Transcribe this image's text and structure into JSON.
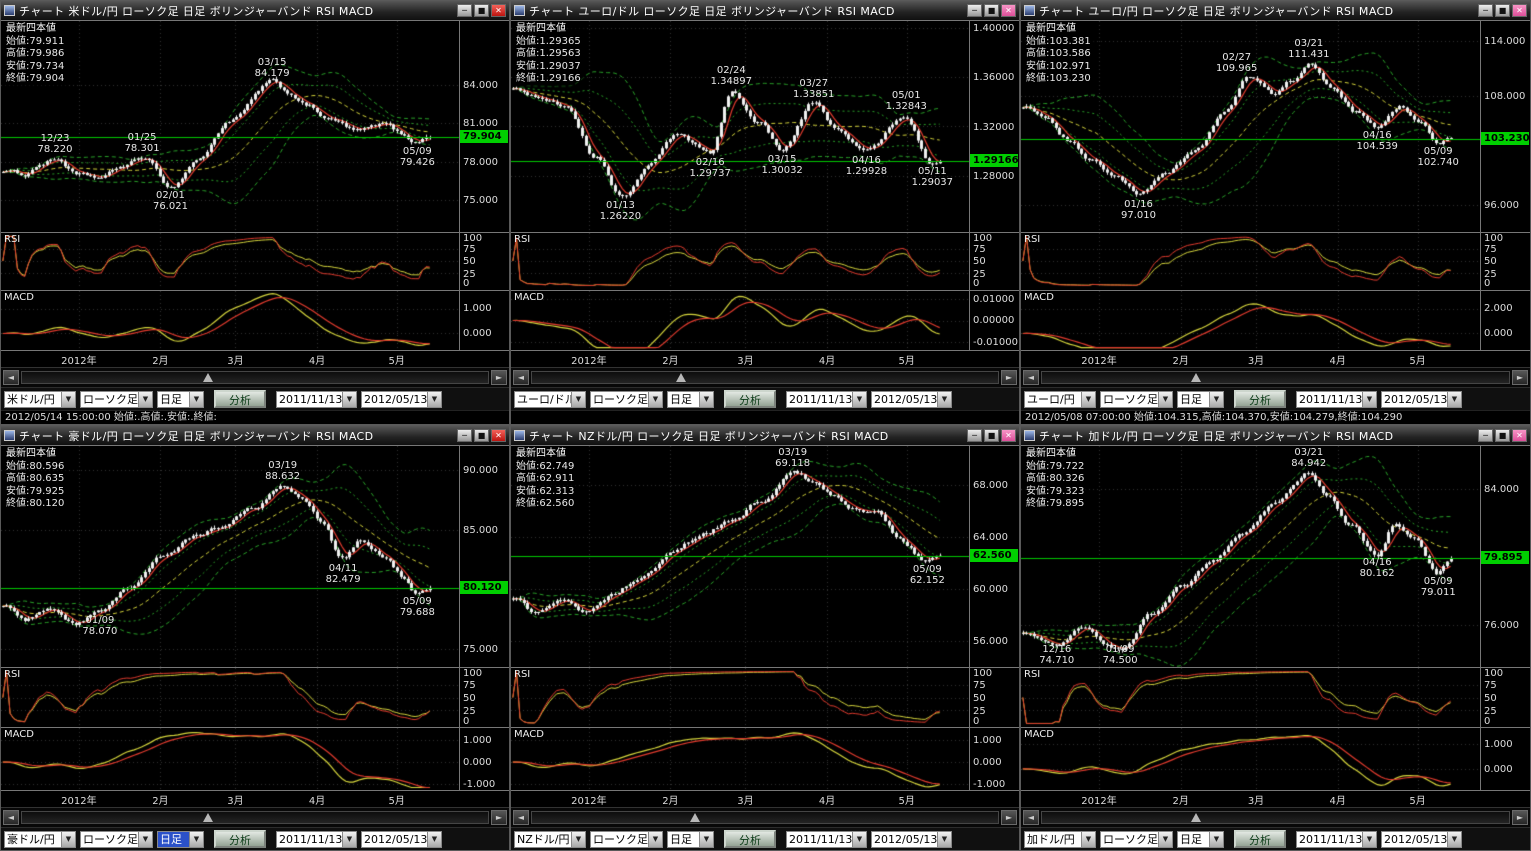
{
  "shared": {
    "quote_header": "最新四本値",
    "rsi_label": "RSI",
    "macd_label": "MACD",
    "analyze": "分析",
    "btn_min": "─",
    "btn_max": "■",
    "btn_close": "✕",
    "arrow_left": "◄",
    "arrow_right": "►",
    "dropdown": "▼"
  },
  "colors": {
    "background": "#000000",
    "candle": "#f0f0f0",
    "band": "#29a329",
    "ma_mid": "#d6d63c",
    "ma_fast": "#e23b2e",
    "price_line": "#00c800",
    "badge_bg": "#00cf00",
    "grid": "#333333"
  },
  "x_axis": [
    {
      "label": "2012年",
      "x": 0.17
    },
    {
      "label": "2月",
      "x": 0.348
    },
    {
      "label": "3月",
      "x": 0.512
    },
    {
      "label": "4月",
      "x": 0.69
    },
    {
      "label": "5月",
      "x": 0.864
    }
  ],
  "rsi_axis": [
    "100",
    "75",
    "50",
    "25",
    "0"
  ],
  "panels": [
    {
      "title": "チャート 米ドル/円 ローソク足 日足 ボリンジャーバンド RSI MACD",
      "focused": true,
      "quote": [
        "始値:79.911",
        "高値:79.986",
        "安値:79.734",
        "終値:79.904"
      ],
      "toolbar": {
        "pair": "米ドル/円",
        "style": "ローソク足",
        "timeframe": "日足",
        "from": "2011/11/13",
        "to": "2012/05/13",
        "timeframe_selected": false
      },
      "status": "2012/05/14 15:00:00 始値:.高値:.安値:.終値:",
      "scroll_pos": 0.4,
      "chart_data": {
        "type": "candlestick",
        "current_price": "79.904",
        "price_axis": [
          "84.000",
          "81.000",
          "78.000",
          "75.000"
        ],
        "y_min": 72.5,
        "y_max": 89.0,
        "x_end": 0.94,
        "anchors": [
          [
            0,
            77.3
          ],
          [
            0.05,
            77.0
          ],
          [
            0.078,
            77.8
          ],
          [
            0.118,
            78.22
          ],
          [
            0.165,
            76.9
          ],
          [
            0.216,
            76.7
          ],
          [
            0.26,
            77.6
          ],
          [
            0.308,
            78.301
          ],
          [
            0.37,
            76.021
          ],
          [
            0.43,
            78.2
          ],
          [
            0.5,
            81.2
          ],
          [
            0.592,
            84.179
          ],
          [
            0.63,
            83.3
          ],
          [
            0.67,
            82.3
          ],
          [
            0.72,
            81.2
          ],
          [
            0.78,
            80.3
          ],
          [
            0.84,
            80.8
          ],
          [
            0.88,
            80.0
          ],
          [
            0.909,
            79.426
          ],
          [
            0.94,
            79.904
          ]
        ],
        "annotations": [
          {
            "date": "12/23",
            "price": "78.220",
            "x": 0.118,
            "side": "above"
          },
          {
            "date": "01/25",
            "price": "78.301",
            "x": 0.308,
            "side": "above"
          },
          {
            "date": "02/01",
            "price": "76.021",
            "x": 0.37,
            "side": "below"
          },
          {
            "date": "03/15",
            "price": "84.179",
            "x": 0.592,
            "side": "above"
          },
          {
            "date": "05/09",
            "price": "79.426",
            "x": 0.909,
            "side": "below"
          }
        ],
        "macd_axis": [
          {
            "label": "1.000",
            "y": 0.3
          },
          {
            "label": "0.000",
            "y": 0.72
          }
        ]
      }
    },
    {
      "title": "チャート ユーロ/ドル ローソク足 日足 ボリンジャーバンド RSI MACD",
      "focused": false,
      "quote": [
        "始値:1.29365",
        "高値:1.29563",
        "安値:1.29037",
        "終値:1.29166"
      ],
      "toolbar": {
        "pair": "ユーロ/ドル",
        "style": "ローソク足",
        "timeframe": "日足",
        "from": "2011/11/13",
        "to": "2012/05/13",
        "timeframe_selected": false
      },
      "status": "",
      "scroll_pos": 0.32,
      "chart_data": {
        "type": "candlestick",
        "current_price": "1.29166",
        "price_axis": [
          "1.40000",
          "1.36000",
          "1.32000",
          "1.28000"
        ],
        "y_min": 1.234,
        "y_max": 1.406,
        "x_end": 0.94,
        "anchors": [
          [
            0,
            1.352
          ],
          [
            0.06,
            1.344
          ],
          [
            0.12,
            1.335
          ],
          [
            0.18,
            1.296
          ],
          [
            0.239,
            1.2622
          ],
          [
            0.3,
            1.289
          ],
          [
            0.36,
            1.312
          ],
          [
            0.435,
            1.2974
          ],
          [
            0.481,
            1.34897
          ],
          [
            0.54,
            1.324
          ],
          [
            0.592,
            1.30032
          ],
          [
            0.661,
            1.33851
          ],
          [
            0.71,
            1.318
          ],
          [
            0.776,
            1.29928
          ],
          [
            0.863,
            1.32843
          ],
          [
            0.92,
            1.29037
          ],
          [
            0.94,
            1.29166
          ]
        ],
        "annotations": [
          {
            "date": "01/13",
            "price": "1.26220",
            "x": 0.239,
            "side": "below"
          },
          {
            "date": "02/16",
            "price": "1.29737",
            "x": 0.435,
            "side": "below"
          },
          {
            "date": "02/24",
            "price": "1.34897",
            "x": 0.481,
            "side": "above"
          },
          {
            "date": "03/15",
            "price": "1.30032",
            "x": 0.592,
            "side": "below"
          },
          {
            "date": "03/27",
            "price": "1.33851",
            "x": 0.661,
            "side": "above"
          },
          {
            "date": "04/16",
            "price": "1.29928",
            "x": 0.776,
            "side": "below"
          },
          {
            "date": "05/01",
            "price": "1.32843",
            "x": 0.863,
            "side": "above"
          },
          {
            "date": "05/11",
            "price": "1.29037",
            "x": 0.92,
            "side": "below"
          }
        ],
        "macd_axis": [
          {
            "label": "0.01000",
            "y": 0.14
          },
          {
            "label": "0.00000",
            "y": 0.5
          },
          {
            "label": "-0.01000",
            "y": 0.86
          }
        ]
      }
    },
    {
      "title": "チャート ユーロ/円 ローソク足 日足 ボリンジャーバンド RSI MACD",
      "focused": false,
      "quote": [
        "始値:103.381",
        "高値:103.586",
        "安値:102.971",
        "終値:103.230"
      ],
      "toolbar": {
        "pair": "ユーロ/円",
        "style": "ローソク足",
        "timeframe": "日足",
        "from": "2011/11/13",
        "to": "2012/05/13",
        "timeframe_selected": false
      },
      "status": "2012/05/08 07:00:00 始値:104.315,高値:104.370,安値:104.279,終値:104.290",
      "scroll_pos": 0.33,
      "chart_data": {
        "type": "candlestick",
        "current_price": "103.230",
        "price_axis": [
          "114.000",
          "108.000",
          "96.000"
        ],
        "y_min": 93.0,
        "y_max": 116.2,
        "x_end": 0.94,
        "anchors": [
          [
            0,
            106.8
          ],
          [
            0.05,
            105.8
          ],
          [
            0.1,
            103.2
          ],
          [
            0.15,
            100.8
          ],
          [
            0.2,
            99.2
          ],
          [
            0.256,
            97.01
          ],
          [
            0.31,
            99.3
          ],
          [
            0.38,
            102.2
          ],
          [
            0.44,
            106.0
          ],
          [
            0.498,
            109.965
          ],
          [
            0.55,
            108.0
          ],
          [
            0.59,
            109.6
          ],
          [
            0.627,
            111.431
          ],
          [
            0.68,
            108.6
          ],
          [
            0.73,
            106.2
          ],
          [
            0.776,
            104.539
          ],
          [
            0.83,
            106.9
          ],
          [
            0.87,
            105.2
          ],
          [
            0.909,
            102.74
          ],
          [
            0.94,
            103.23
          ]
        ],
        "annotations": [
          {
            "date": "01/16",
            "price": "97.010",
            "x": 0.256,
            "side": "below"
          },
          {
            "date": "02/27",
            "price": "109.965",
            "x": 0.47,
            "side": "above"
          },
          {
            "date": "03/21",
            "price": "111.431",
            "x": 0.627,
            "side": "above"
          },
          {
            "date": "04/16",
            "price": "104.539",
            "x": 0.776,
            "side": "below"
          },
          {
            "date": "05/09",
            "price": "102.740",
            "x": 0.909,
            "side": "below"
          }
        ],
        "macd_axis": [
          {
            "label": "2.000",
            "y": 0.3
          },
          {
            "label": "0.000",
            "y": 0.72
          }
        ]
      }
    },
    {
      "title": "チャート 豪ドル/円 ローソク足 日足 ボリンジャーバンド RSI MACD",
      "focused": true,
      "quote": [
        "始値:80.596",
        "高値:80.635",
        "安値:79.925",
        "終値:80.120"
      ],
      "toolbar": {
        "pair": "豪ドル/円",
        "style": "ローソク足",
        "timeframe": "日足",
        "from": "2011/11/13",
        "to": "2012/05/13",
        "timeframe_selected": true
      },
      "status": "",
      "scroll_pos": 0.4,
      "chart_data": {
        "type": "candlestick",
        "current_price": "80.120",
        "price_axis": [
          "90.000",
          "85.000",
          "75.000"
        ],
        "y_min": 73.5,
        "y_max": 92.0,
        "x_end": 0.94,
        "anchors": [
          [
            0,
            78.6
          ],
          [
            0.05,
            77.4
          ],
          [
            0.1,
            78.3
          ],
          [
            0.16,
            77.1
          ],
          [
            0.216,
            78.07
          ],
          [
            0.28,
            80.2
          ],
          [
            0.35,
            82.6
          ],
          [
            0.42,
            84.3
          ],
          [
            0.48,
            85.2
          ],
          [
            0.55,
            86.8
          ],
          [
            0.615,
            88.632
          ],
          [
            0.66,
            87.6
          ],
          [
            0.7,
            85.6
          ],
          [
            0.747,
            82.479
          ],
          [
            0.79,
            84.1
          ],
          [
            0.84,
            82.8
          ],
          [
            0.88,
            81.0
          ],
          [
            0.909,
            79.688
          ],
          [
            0.94,
            80.12
          ]
        ],
        "annotations": [
          {
            "date": "01/09",
            "price": "78.070",
            "x": 0.216,
            "side": "below"
          },
          {
            "date": "03/19",
            "price": "88.632",
            "x": 0.615,
            "side": "above"
          },
          {
            "date": "04/11",
            "price": "82.479",
            "x": 0.747,
            "side": "below"
          },
          {
            "date": "05/09",
            "price": "79.688",
            "x": 0.909,
            "side": "below"
          }
        ],
        "macd_axis": [
          {
            "label": "1.000",
            "y": 0.2
          },
          {
            "label": "0.000",
            "y": 0.55
          },
          {
            "label": "-1.000",
            "y": 0.9
          }
        ]
      }
    },
    {
      "title": "チャート NZドル/円 ローソク足 日足 ボリンジャーバンド RSI MACD",
      "focused": false,
      "quote": [
        "始値:62.749",
        "高値:62.911",
        "安値:62.313",
        "終値:62.560"
      ],
      "toolbar": {
        "pair": "NZドル/円",
        "style": "ローソク足",
        "timeframe": "日足",
        "from": "2011/11/13",
        "to": "2012/05/13",
        "timeframe_selected": false
      },
      "status": "",
      "scroll_pos": 0.35,
      "chart_data": {
        "type": "candlestick",
        "current_price": "62.560",
        "price_axis": [
          "68.000",
          "64.000",
          "60.000",
          "56.000"
        ],
        "y_min": 54.0,
        "y_max": 71.0,
        "x_end": 0.94,
        "anchors": [
          [
            0,
            59.2
          ],
          [
            0.05,
            58.1
          ],
          [
            0.1,
            59.3
          ],
          [
            0.16,
            58.3
          ],
          [
            0.216,
            59.6
          ],
          [
            0.28,
            60.9
          ],
          [
            0.35,
            62.8
          ],
          [
            0.42,
            64.3
          ],
          [
            0.48,
            65.3
          ],
          [
            0.55,
            66.9
          ],
          [
            0.615,
            69.118
          ],
          [
            0.66,
            68.3
          ],
          [
            0.7,
            67.3
          ],
          [
            0.747,
            66.1
          ],
          [
            0.8,
            65.8
          ],
          [
            0.85,
            63.9
          ],
          [
            0.909,
            62.152
          ],
          [
            0.94,
            62.56
          ]
        ],
        "annotations": [
          {
            "date": "03/19",
            "price": "69.118",
            "x": 0.615,
            "side": "above"
          },
          {
            "date": "05/09",
            "price": "62.152",
            "x": 0.909,
            "side": "below"
          }
        ],
        "macd_axis": [
          {
            "label": "1.000",
            "y": 0.2
          },
          {
            "label": "0.000",
            "y": 0.55
          },
          {
            "label": "-1.000",
            "y": 0.9
          }
        ]
      }
    },
    {
      "title": "チャート 加ドル/円 ローソク足 日足 ボリンジャーバンド RSI MACD",
      "focused": false,
      "quote": [
        "始値:79.722",
        "高値:80.326",
        "安値:79.323",
        "終値:79.895"
      ],
      "toolbar": {
        "pair": "加ドル/円",
        "style": "ローソク足",
        "timeframe": "日足",
        "from": "2011/11/13",
        "to": "2012/05/13",
        "timeframe_selected": false
      },
      "status": "",
      "scroll_pos": 0.33,
      "chart_data": {
        "type": "candlestick",
        "current_price": "79.895",
        "price_axis": [
          "84.000",
          "76.000"
        ],
        "y_min": 73.5,
        "y_max": 86.5,
        "x_end": 0.94,
        "anchors": [
          [
            0,
            75.6
          ],
          [
            0.078,
            74.71
          ],
          [
            0.13,
            75.9
          ],
          [
            0.18,
            74.9
          ],
          [
            0.216,
            74.5
          ],
          [
            0.28,
            76.6
          ],
          [
            0.35,
            78.2
          ],
          [
            0.42,
            79.9
          ],
          [
            0.48,
            81.2
          ],
          [
            0.55,
            83.1
          ],
          [
            0.627,
            84.942
          ],
          [
            0.67,
            83.5
          ],
          [
            0.72,
            81.9
          ],
          [
            0.776,
            80.162
          ],
          [
            0.82,
            82.1
          ],
          [
            0.86,
            81.1
          ],
          [
            0.909,
            79.011
          ],
          [
            0.94,
            79.895
          ]
        ],
        "annotations": [
          {
            "date": "12/16",
            "price": "74.710",
            "x": 0.078,
            "side": "below"
          },
          {
            "date": "01/09",
            "price": "74.500",
            "x": 0.216,
            "side": "below"
          },
          {
            "date": "03/21",
            "price": "84.942",
            "x": 0.627,
            "side": "above"
          },
          {
            "date": "04/16",
            "price": "80.162",
            "x": 0.776,
            "side": "below"
          },
          {
            "date": "05/09",
            "price": "79.011",
            "x": 0.909,
            "side": "below"
          }
        ],
        "macd_axis": [
          {
            "label": "1.000",
            "y": 0.26
          },
          {
            "label": "0.000",
            "y": 0.66
          }
        ]
      }
    }
  ]
}
